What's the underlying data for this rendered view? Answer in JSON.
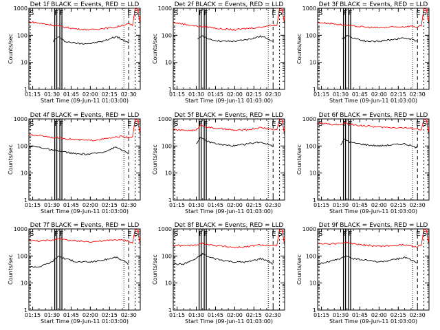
{
  "figure": {
    "ylabel": "Counts/sec",
    "xlabel": "Start Time (09-Jun-11 01:03:00)",
    "series_colors": {
      "events": "#000000",
      "lld": "#ff0000"
    },
    "tick_labels_x": [
      "01:15",
      "01:30",
      "01:45",
      "02:00",
      "02:15",
      "02:30"
    ],
    "tick_labels_y": [
      "1",
      "10",
      "100",
      "1000"
    ]
  },
  "chart_data": [
    {
      "type": "line",
      "title": "Det 1f BLACK = Events, RED = LLD",
      "xlabel": "Start Time (09-Jun-11 01:03:00)",
      "ylabel": "Counts/sec",
      "yscale": "log",
      "ylim": [
        1,
        1000
      ],
      "xlim_minutes": [
        72,
        159
      ],
      "markers": [
        {
          "label": "S",
          "minute": 72
        },
        {
          "label": "F",
          "minute": 93
        },
        {
          "label": "F",
          "minute": 97
        },
        {
          "label": "E",
          "minute": 150
        },
        {
          "label": "S",
          "minute": 155
        }
      ],
      "series": [
        {
          "name": "Events",
          "color": "#000000",
          "x": [
            91,
            95,
            100,
            110,
            120,
            130,
            140,
            145,
            150
          ],
          "values": [
            60,
            90,
            60,
            50,
            50,
            60,
            90,
            70,
            50
          ]
        },
        {
          "name": "LLD",
          "color": "#ff0000",
          "x": [
            72,
            80,
            90,
            100,
            110,
            120,
            130,
            140,
            145,
            150,
            153,
            155,
            157,
            159
          ],
          "values": [
            320,
            280,
            240,
            200,
            170,
            160,
            180,
            200,
            240,
            260,
            230,
            1000,
            900,
            250
          ]
        }
      ]
    },
    {
      "type": "line",
      "title": "Det 2f BLACK = Events, RED = LLD",
      "xlabel": "Start Time (09-Jun-11 01:03:00)",
      "ylabel": "Counts/sec",
      "yscale": "log",
      "ylim": [
        1,
        1000
      ],
      "xlim_minutes": [
        72,
        159
      ],
      "markers": [
        {
          "label": "S",
          "minute": 72
        },
        {
          "label": "F",
          "minute": 93
        },
        {
          "label": "F",
          "minute": 97
        },
        {
          "label": "E",
          "minute": 150
        },
        {
          "label": "S",
          "minute": 155
        }
      ],
      "series": [
        {
          "name": "Events",
          "color": "#000000",
          "x": [
            91,
            95,
            100,
            110,
            120,
            130,
            140,
            145,
            150
          ],
          "values": [
            70,
            100,
            70,
            60,
            60,
            70,
            90,
            80,
            60
          ]
        },
        {
          "name": "LLD",
          "color": "#ff0000",
          "x": [
            72,
            80,
            90,
            100,
            110,
            120,
            130,
            140,
            145,
            150,
            153,
            155,
            157,
            159
          ],
          "values": [
            300,
            260,
            220,
            200,
            170,
            160,
            180,
            200,
            220,
            240,
            230,
            1000,
            900,
            250
          ]
        }
      ]
    },
    {
      "type": "line",
      "title": "Det 3f BLACK = Events, RED = LLD",
      "xlabel": "Start Time (09-Jun-11 01:03:00)",
      "ylabel": "Counts/sec",
      "yscale": "log",
      "ylim": [
        1,
        1000
      ],
      "xlim_minutes": [
        72,
        159
      ],
      "markers": [
        {
          "label": "S",
          "minute": 72
        },
        {
          "label": "F",
          "minute": 93
        },
        {
          "label": "F",
          "minute": 97
        },
        {
          "label": "E",
          "minute": 150
        },
        {
          "label": "S",
          "minute": 155
        }
      ],
      "series": [
        {
          "name": "Events",
          "color": "#000000",
          "x": [
            91,
            95,
            100,
            110,
            120,
            130,
            140,
            145,
            150
          ],
          "values": [
            70,
            100,
            80,
            60,
            60,
            70,
            80,
            70,
            60
          ]
        },
        {
          "name": "LLD",
          "color": "#ff0000",
          "x": [
            72,
            80,
            90,
            100,
            110,
            120,
            130,
            140,
            145,
            150,
            153,
            155,
            157,
            159
          ],
          "values": [
            300,
            280,
            250,
            220,
            200,
            190,
            200,
            210,
            220,
            200,
            220,
            1000,
            900,
            250
          ]
        }
      ]
    },
    {
      "type": "line",
      "title": "Det 4f BLACK = Events, RED = LLD",
      "xlabel": "Start Time (09-Jun-11 01:03:00)",
      "ylabel": "Counts/sec",
      "yscale": "log",
      "ylim": [
        1,
        1000
      ],
      "xlim_minutes": [
        72,
        159
      ],
      "markers": [
        {
          "label": "S",
          "minute": 72
        },
        {
          "label": "F",
          "minute": 93
        },
        {
          "label": "F",
          "minute": 97
        },
        {
          "label": "E",
          "minute": 150
        },
        {
          "label": "S",
          "minute": 155
        }
      ],
      "series": [
        {
          "name": "Events",
          "color": "#000000",
          "x": [
            72,
            80,
            90,
            100,
            110,
            120,
            130,
            140,
            145,
            150
          ],
          "values": [
            100,
            90,
            70,
            60,
            50,
            50,
            60,
            90,
            70,
            50
          ]
        },
        {
          "name": "LLD",
          "color": "#ff0000",
          "x": [
            72,
            80,
            90,
            100,
            110,
            120,
            130,
            140,
            145,
            150,
            153,
            155,
            157,
            159
          ],
          "values": [
            250,
            250,
            210,
            190,
            170,
            160,
            180,
            210,
            230,
            200,
            220,
            1000,
            900,
            250
          ]
        }
      ]
    },
    {
      "type": "line",
      "title": "Det 5f BLACK = Events, RED = LLD",
      "xlabel": "Start Time (09-Jun-11 01:03:00)",
      "ylabel": "Counts/sec",
      "yscale": "log",
      "ylim": [
        1,
        1000
      ],
      "xlim_minutes": [
        72,
        159
      ],
      "markers": [
        {
          "label": "S",
          "minute": 72
        },
        {
          "label": "F",
          "minute": 93
        },
        {
          "label": "F",
          "minute": 97
        },
        {
          "label": "E",
          "minute": 150
        },
        {
          "label": "S",
          "minute": 155
        }
      ],
      "series": [
        {
          "name": "Events",
          "color": "#000000",
          "x": [
            90,
            93,
            97,
            100,
            110,
            120,
            130,
            140,
            145,
            150
          ],
          "values": [
            120,
            200,
            160,
            140,
            110,
            100,
            120,
            140,
            120,
            100
          ]
        },
        {
          "name": "LLD",
          "color": "#ff0000",
          "x": [
            72,
            80,
            90,
            93,
            100,
            110,
            120,
            130,
            140,
            145,
            150,
            153,
            155,
            157,
            159
          ],
          "values": [
            400,
            380,
            380,
            600,
            480,
            430,
            380,
            400,
            480,
            450,
            400,
            400,
            1000,
            900,
            250
          ]
        }
      ]
    },
    {
      "type": "line",
      "title": "Det 6f BLACK = Events, RED = LLD",
      "xlabel": "Start Time (09-Jun-11 01:03:00)",
      "ylabel": "Counts/sec",
      "yscale": "log",
      "ylim": [
        1,
        1000
      ],
      "xlim_minutes": [
        72,
        159
      ],
      "markers": [
        {
          "label": "S",
          "minute": 72
        },
        {
          "label": "F",
          "minute": 93
        },
        {
          "label": "F",
          "minute": 97
        },
        {
          "label": "E",
          "minute": 150
        },
        {
          "label": "S",
          "minute": 155
        }
      ],
      "series": [
        {
          "name": "Events",
          "color": "#000000",
          "x": [
            90,
            93,
            97,
            100,
            110,
            120,
            130,
            140,
            145,
            150
          ],
          "values": [
            110,
            180,
            140,
            130,
            110,
            100,
            110,
            120,
            100,
            85
          ]
        },
        {
          "name": "LLD",
          "color": "#ff0000",
          "x": [
            72,
            80,
            90,
            93,
            100,
            110,
            120,
            130,
            140,
            145,
            150,
            153,
            155,
            157,
            159
          ],
          "values": [
            700,
            650,
            600,
            700,
            600,
            550,
            500,
            480,
            470,
            450,
            420,
            400,
            1000,
            900,
            250
          ]
        }
      ]
    },
    {
      "type": "line",
      "title": "Det 7f BLACK = Events, RED = LLD",
      "xlabel": "Start Time (09-Jun-11 01:03:00)",
      "ylabel": "Counts/sec",
      "yscale": "log",
      "ylim": [
        1,
        1000
      ],
      "xlim_minutes": [
        72,
        159
      ],
      "markers": [
        {
          "label": "S",
          "minute": 72
        },
        {
          "label": "F",
          "minute": 93
        },
        {
          "label": "F",
          "minute": 97
        },
        {
          "label": "E",
          "minute": 150
        },
        {
          "label": "S",
          "minute": 155
        }
      ],
      "series": [
        {
          "name": "Events",
          "color": "#000000",
          "x": [
            72,
            80,
            90,
            95,
            100,
            110,
            120,
            130,
            140,
            145,
            150
          ],
          "values": [
            40,
            40,
            60,
            100,
            80,
            60,
            60,
            70,
            90,
            70,
            50
          ]
        },
        {
          "name": "LLD",
          "color": "#ff0000",
          "x": [
            72,
            80,
            90,
            95,
            100,
            110,
            120,
            130,
            140,
            145,
            150,
            153,
            155,
            157,
            159
          ],
          "values": [
            380,
            360,
            380,
            450,
            400,
            350,
            340,
            360,
            400,
            380,
            360,
            300,
            1000,
            900,
            250
          ]
        }
      ]
    },
    {
      "type": "line",
      "title": "Det 8f BLACK = Events, RED = LLD",
      "xlabel": "Start Time (09-Jun-11 01:03:00)",
      "ylabel": "Counts/sec",
      "yscale": "log",
      "ylim": [
        1,
        1000
      ],
      "xlim_minutes": [
        72,
        159
      ],
      "markers": [
        {
          "label": "S",
          "minute": 72
        },
        {
          "label": "F",
          "minute": 93
        },
        {
          "label": "F",
          "minute": 97
        },
        {
          "label": "E",
          "minute": 150
        },
        {
          "label": "S",
          "minute": 155
        }
      ],
      "series": [
        {
          "name": "Events",
          "color": "#000000",
          "x": [
            72,
            80,
            90,
            95,
            100,
            110,
            120,
            130,
            140,
            145,
            150
          ],
          "values": [
            50,
            50,
            80,
            120,
            90,
            70,
            60,
            60,
            80,
            70,
            50
          ]
        },
        {
          "name": "LLD",
          "color": "#ff0000",
          "x": [
            72,
            80,
            90,
            95,
            100,
            110,
            120,
            130,
            140,
            145,
            150,
            153,
            155,
            157,
            159
          ],
          "values": [
            250,
            240,
            250,
            300,
            260,
            230,
            210,
            220,
            260,
            250,
            230,
            250,
            1000,
            900,
            250
          ]
        }
      ]
    },
    {
      "type": "line",
      "title": "Det 9f BLACK = Events, RED = LLD",
      "xlabel": "Start Time (09-Jun-11 01:03:00)",
      "ylabel": "Counts/sec",
      "yscale": "log",
      "ylim": [
        1,
        1000
      ],
      "xlim_minutes": [
        72,
        159
      ],
      "markers": [
        {
          "label": "S",
          "minute": 72
        },
        {
          "label": "F",
          "minute": 93
        },
        {
          "label": "F",
          "minute": 97
        },
        {
          "label": "E",
          "minute": 150
        },
        {
          "label": "S",
          "minute": 155
        }
      ],
      "series": [
        {
          "name": "Events",
          "color": "#000000",
          "x": [
            72,
            80,
            90,
            95,
            100,
            110,
            120,
            130,
            140,
            145,
            150
          ],
          "values": [
            50,
            60,
            80,
            100,
            80,
            70,
            60,
            70,
            90,
            70,
            55
          ]
        },
        {
          "name": "LLD",
          "color": "#ff0000",
          "x": [
            72,
            80,
            90,
            95,
            100,
            110,
            120,
            130,
            140,
            145,
            150,
            153,
            155,
            157,
            159
          ],
          "values": [
            300,
            280,
            300,
            320,
            280,
            250,
            230,
            240,
            260,
            240,
            220,
            250,
            1000,
            900,
            250
          ]
        }
      ]
    }
  ]
}
